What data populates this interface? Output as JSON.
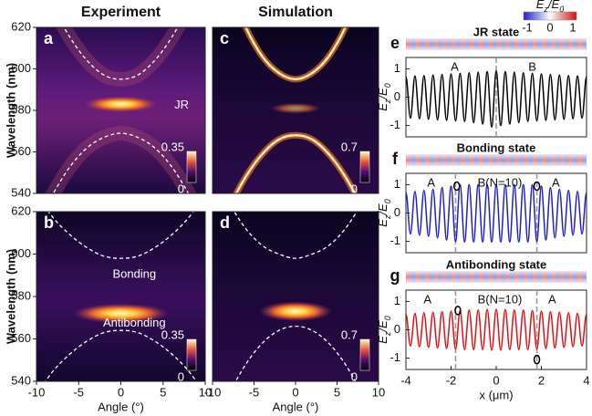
{
  "chart_data": [
    {
      "type": "heatmap",
      "title": "Experiment",
      "label": "a",
      "ylabel": "Wavelength (nm)",
      "xlim": [
        -10,
        10
      ],
      "ylim": [
        540,
        620
      ],
      "yticks": [
        540,
        560,
        580,
        600,
        620
      ],
      "x": [
        -10,
        -8,
        -6,
        -4,
        -2,
        0,
        2,
        4,
        6,
        8,
        10
      ],
      "curves": [
        {
          "values": [
            650,
            630,
            615,
            604,
            597,
            595,
            597,
            604,
            615,
            630,
            650
          ]
        },
        {
          "values": [
            524,
            540,
            553,
            562,
            567,
            569,
            567,
            562,
            553,
            540,
            524
          ]
        }
      ],
      "spot": {
        "x": 0,
        "y": 583
      },
      "annotations": [
        "JR"
      ],
      "colorbar": {
        "ticks": [
          0,
          0.35
        ]
      }
    },
    {
      "type": "heatmap",
      "label": "b",
      "ylabel": "Wavelength (nm)",
      "xlabel": "Angle (°)",
      "xlim": [
        -10,
        10
      ],
      "ylim": [
        540,
        620
      ],
      "yticks": [
        540,
        560,
        580,
        600,
        620
      ],
      "xticks": [
        -10,
        -5,
        0,
        5,
        10
      ],
      "x": [
        -10,
        -8,
        -6,
        -4,
        -2,
        0,
        2,
        4,
        6,
        8,
        10
      ],
      "curves": [
        {
          "values": [
            628,
            617,
            609,
            603,
            599,
            598,
            599,
            603,
            609,
            617,
            628
          ]
        },
        {
          "values": [
            534,
            545,
            553,
            559,
            563,
            564,
            563,
            559,
            553,
            545,
            534
          ]
        }
      ],
      "spot": {
        "x": 0,
        "y": 572
      },
      "annotations": [
        "Bonding",
        "Antibonding"
      ],
      "colorbar": {
        "ticks": [
          0,
          0.35
        ]
      }
    },
    {
      "type": "heatmap",
      "title": "Simulation",
      "label": "c",
      "xlim": [
        -10,
        10
      ],
      "ylim": [
        540,
        620
      ],
      "x": [
        -10,
        -8,
        -6,
        -4,
        -2,
        0,
        2,
        4,
        6,
        8,
        10
      ],
      "curves": [
        {
          "values": [
            665,
            640,
            620,
            606,
            598,
            595,
            598,
            606,
            620,
            640,
            665
          ]
        },
        {
          "values": [
            513,
            533,
            548,
            559,
            566,
            568,
            566,
            559,
            548,
            533,
            513
          ]
        }
      ],
      "spot": {
        "x": 0,
        "y": 581
      },
      "colorbar": {
        "ticks": [
          0,
          0.7
        ]
      }
    },
    {
      "type": "heatmap",
      "label": "d",
      "xlabel": "Angle (°)",
      "xlim": [
        -10,
        10
      ],
      "ylim": [
        540,
        620
      ],
      "xticks": [
        -10,
        -5,
        0,
        5,
        10
      ],
      "x": [
        -10,
        -8,
        -6,
        -4,
        -2,
        0,
        2,
        4,
        6,
        8,
        10
      ],
      "curves": [
        {
          "values": [
            638,
            624,
            612,
            604,
            600,
            598,
            600,
            604,
            612,
            624,
            638
          ]
        },
        {
          "values": [
            516,
            534,
            548,
            558,
            564,
            566,
            564,
            558,
            548,
            534,
            516
          ]
        }
      ],
      "spot": {
        "x": 0,
        "y": 573
      },
      "colorbar": {
        "ticks": [
          0,
          0.7
        ]
      }
    },
    {
      "type": "line",
      "title": "JR state",
      "label": "e",
      "ylabel": [
        "E",
        "z",
        "/E",
        "0"
      ],
      "xlim": [
        -4,
        4
      ],
      "ylim": [
        -1.4,
        1.4
      ],
      "yticks": [
        -1,
        0,
        1
      ],
      "color": "#000000",
      "x": [
        -4,
        -3.8,
        -3.6,
        -3.4,
        -3.2,
        -3,
        -2.8,
        -2.6,
        -2.4,
        -2.2,
        -2,
        -1.8,
        -1.6,
        -1.4,
        -1.2,
        -1,
        -0.8,
        -0.6,
        -0.4,
        -0.2,
        0,
        0.2,
        0.4,
        0.6,
        0.8,
        1,
        1.2,
        1.4,
        1.6,
        1.8,
        2,
        2.2,
        2.4,
        2.6,
        2.8,
        3,
        3.2,
        3.4,
        3.6,
        3.8,
        4
      ],
      "values": [
        0.72,
        -0.74,
        0.75,
        -0.76,
        0.76,
        -0.78,
        0.78,
        -0.8,
        0.8,
        -0.82,
        0.82,
        -0.84,
        0.84,
        -0.86,
        0.86,
        -0.9,
        0.88,
        -0.95,
        0.9,
        -1.05,
        0.92,
        -1.0,
        0.9,
        -0.95,
        0.88,
        -0.9,
        0.86,
        -0.86,
        0.84,
        -0.84,
        0.82,
        -0.82,
        0.8,
        -0.8,
        0.78,
        -0.78,
        0.76,
        -0.76,
        0.75,
        -0.74,
        0.72
      ],
      "vlines": [
        0
      ],
      "annotations": [
        "A",
        "B"
      ],
      "colorbar": {
        "label": [
          "E",
          "z",
          "/E",
          "0"
        ],
        "ticks": [
          -1,
          0,
          1
        ]
      }
    },
    {
      "type": "line",
      "title": "Bonding state",
      "label": "f",
      "ylabel": [
        "E",
        "z",
        "/E",
        "0"
      ],
      "xlim": [
        -4,
        4
      ],
      "ylim": [
        -1.4,
        1.4
      ],
      "yticks": [
        -1,
        0,
        1
      ],
      "color": "#1f1fd0",
      "x": [
        -4,
        -3.8,
        -3.6,
        -3.4,
        -3.2,
        -3,
        -2.8,
        -2.6,
        -2.4,
        -2.2,
        -2,
        -1.8,
        -1.6,
        -1.4,
        -1.2,
        -1,
        -0.8,
        -0.6,
        -0.4,
        -0.2,
        0,
        0.2,
        0.4,
        0.6,
        0.8,
        1,
        1.2,
        1.4,
        1.6,
        1.8,
        2,
        2.2,
        2.4,
        2.6,
        2.8,
        3,
        3.2,
        3.4,
        3.6,
        3.8,
        4
      ],
      "values": [
        0.72,
        -0.74,
        0.76,
        -0.78,
        0.8,
        -0.82,
        0.84,
        -0.88,
        0.9,
        -0.95,
        0.95,
        -1.0,
        1.0,
        -1.02,
        1.0,
        -1.02,
        1.0,
        -1.02,
        1.0,
        -1.02,
        1.0,
        -1.02,
        1.0,
        -1.02,
        1.0,
        -1.02,
        1.0,
        -1.02,
        1.0,
        -1.0,
        0.95,
        -0.95,
        0.9,
        -0.88,
        0.84,
        -0.82,
        0.8,
        -0.78,
        0.76,
        -0.74,
        0.72
      ],
      "vlines": [
        -1.8,
        1.8
      ],
      "markers": {
        "x": [
          -1.75,
          1.8
        ],
        "y": [
          0.95,
          0.95
        ]
      },
      "annotations": [
        "A",
        "B(N=10)",
        "A"
      ]
    },
    {
      "type": "line",
      "title": "Antibonding state",
      "label": "g",
      "ylabel": [
        "E",
        "z",
        "/E",
        "0"
      ],
      "xlabel": "x (μm)",
      "xlim": [
        -4,
        4
      ],
      "ylim": [
        -1.4,
        1.4
      ],
      "yticks": [
        -1,
        0,
        1
      ],
      "xticks": [
        -4,
        -2,
        0,
        2,
        4
      ],
      "color": "#e01010",
      "x": [
        -4,
        -3.8,
        -3.6,
        -3.4,
        -3.2,
        -3,
        -2.8,
        -2.6,
        -2.4,
        -2.2,
        -2,
        -1.8,
        -1.6,
        -1.4,
        -1.2,
        -1,
        -0.8,
        -0.6,
        -0.4,
        -0.2,
        0,
        0.2,
        0.4,
        0.6,
        0.8,
        1,
        1.2,
        1.4,
        1.6,
        1.8,
        2,
        2.2,
        2.4,
        2.6,
        2.8,
        3,
        3.2,
        3.4,
        3.6,
        3.8,
        4
      ],
      "values": [
        0.55,
        -0.57,
        0.58,
        -0.6,
        0.6,
        -0.62,
        0.62,
        -0.64,
        0.64,
        -0.66,
        0.66,
        -0.68,
        0.68,
        -0.7,
        0.7,
        -0.7,
        0.7,
        -0.7,
        0.72,
        -0.72,
        0.72,
        -0.72,
        0.72,
        -0.7,
        0.7,
        -0.7,
        0.7,
        -0.7,
        0.68,
        -0.68,
        0.66,
        -0.66,
        0.64,
        -0.64,
        0.62,
        -0.62,
        0.6,
        -0.6,
        0.58,
        -0.57,
        0.55
      ],
      "vlines": [
        -1.8,
        1.8
      ],
      "markers": {
        "x": [
          -1.7,
          1.8
        ],
        "y": [
          0.68,
          -1.05
        ]
      },
      "annotations": [
        "A",
        "B(N=10)",
        "A"
      ]
    }
  ]
}
